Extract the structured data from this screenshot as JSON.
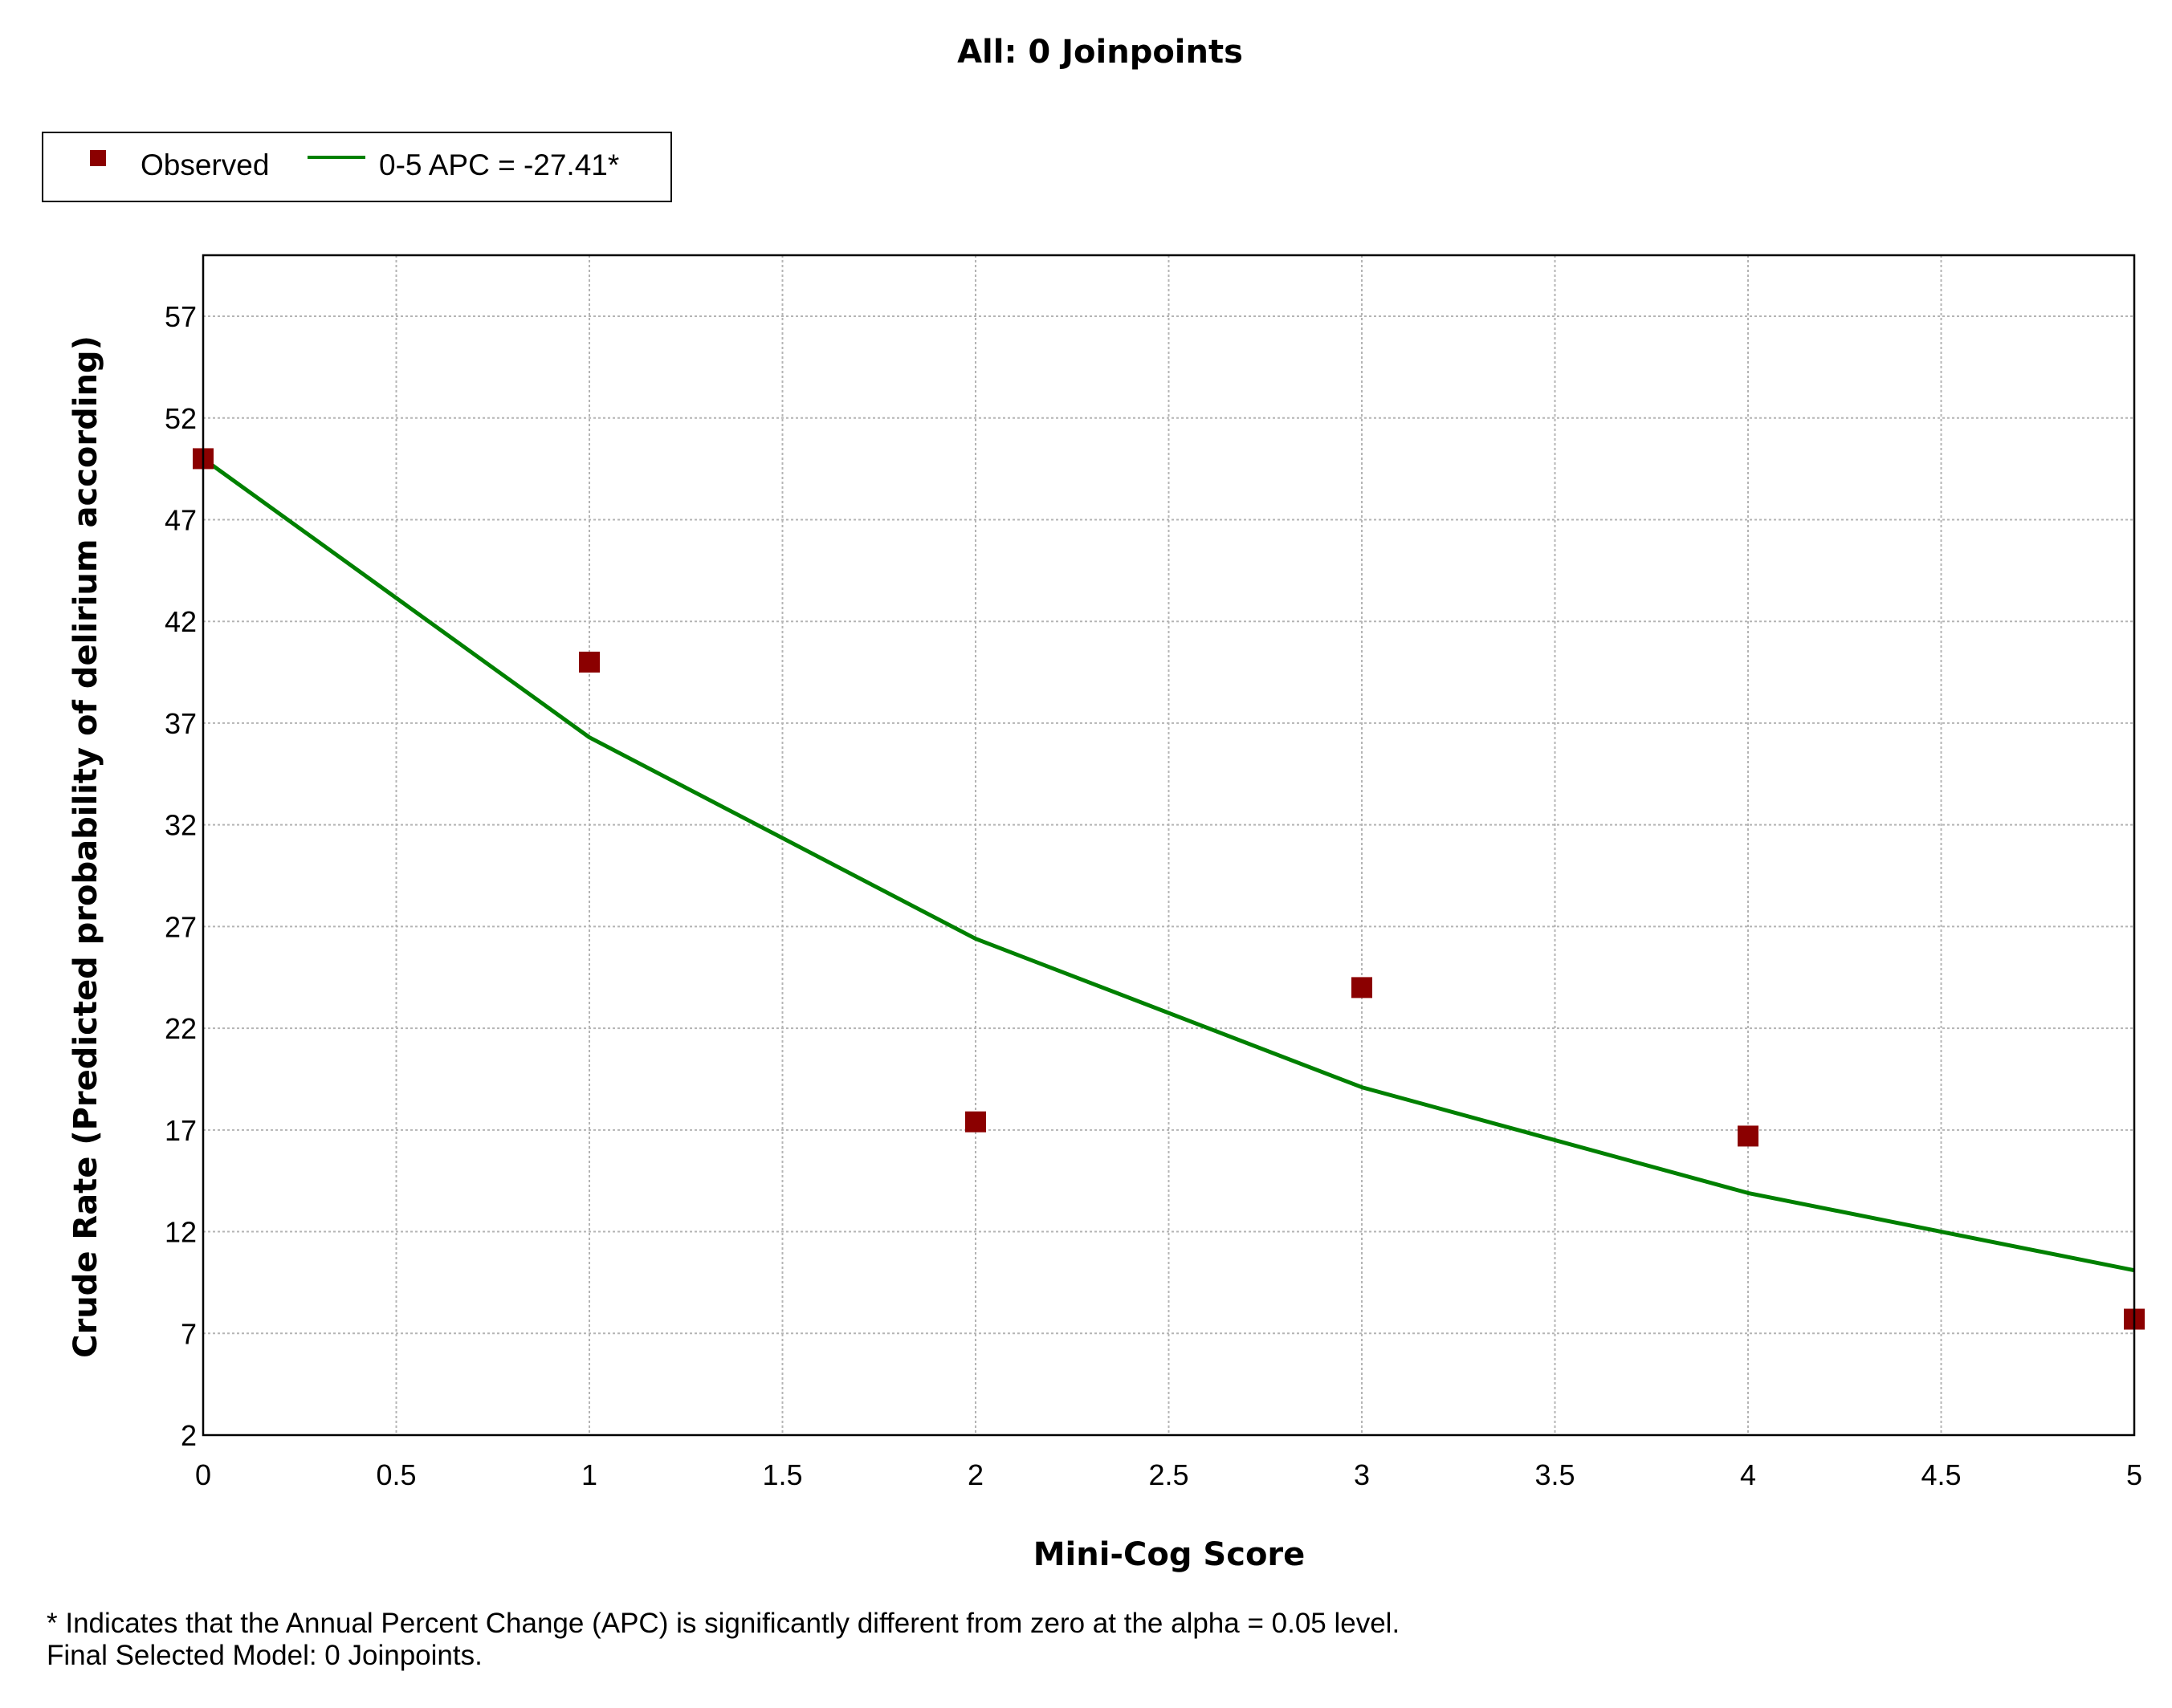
{
  "colors": {
    "observed": "#8b0000",
    "fit_line": "#008000",
    "grid": "#b4b4b4",
    "frame": "#000000"
  },
  "chart_data": {
    "type": "scatter",
    "title": "All: 0 Joinpoints",
    "xlabel": "Mini-Cog Score",
    "ylabel": "Crude Rate (Predicted probability of delirium according)",
    "xlim": [
      0,
      5
    ],
    "ylim": [
      2,
      60
    ],
    "x_ticks": [
      "0",
      "0.5",
      "1",
      "1.5",
      "2",
      "2.5",
      "3",
      "3.5",
      "4",
      "4.5",
      "5"
    ],
    "y_ticks": [
      "2",
      "7",
      "12",
      "17",
      "22",
      "27",
      "32",
      "37",
      "42",
      "47",
      "52",
      "57"
    ],
    "grid": true,
    "legend_position": "top-left",
    "series": [
      {
        "name": "Observed",
        "kind": "points",
        "x": [
          0,
          1,
          2,
          3,
          4,
          5
        ],
        "y": [
          50,
          40,
          17.4,
          24,
          16.7,
          7.7
        ]
      },
      {
        "name": "0-5 APC  = -27.41*",
        "kind": "line",
        "x": [
          0,
          1,
          2,
          3,
          4,
          5
        ],
        "y": [
          50,
          36.3,
          26.4,
          19.1,
          13.9,
          10.1
        ]
      }
    ]
  },
  "footnotes": {
    "line1": "* Indicates that the Annual Percent Change (APC) is significantly different from zero at the alpha = 0.05 level.",
    "line2": "Final Selected Model: 0 Joinpoints."
  }
}
